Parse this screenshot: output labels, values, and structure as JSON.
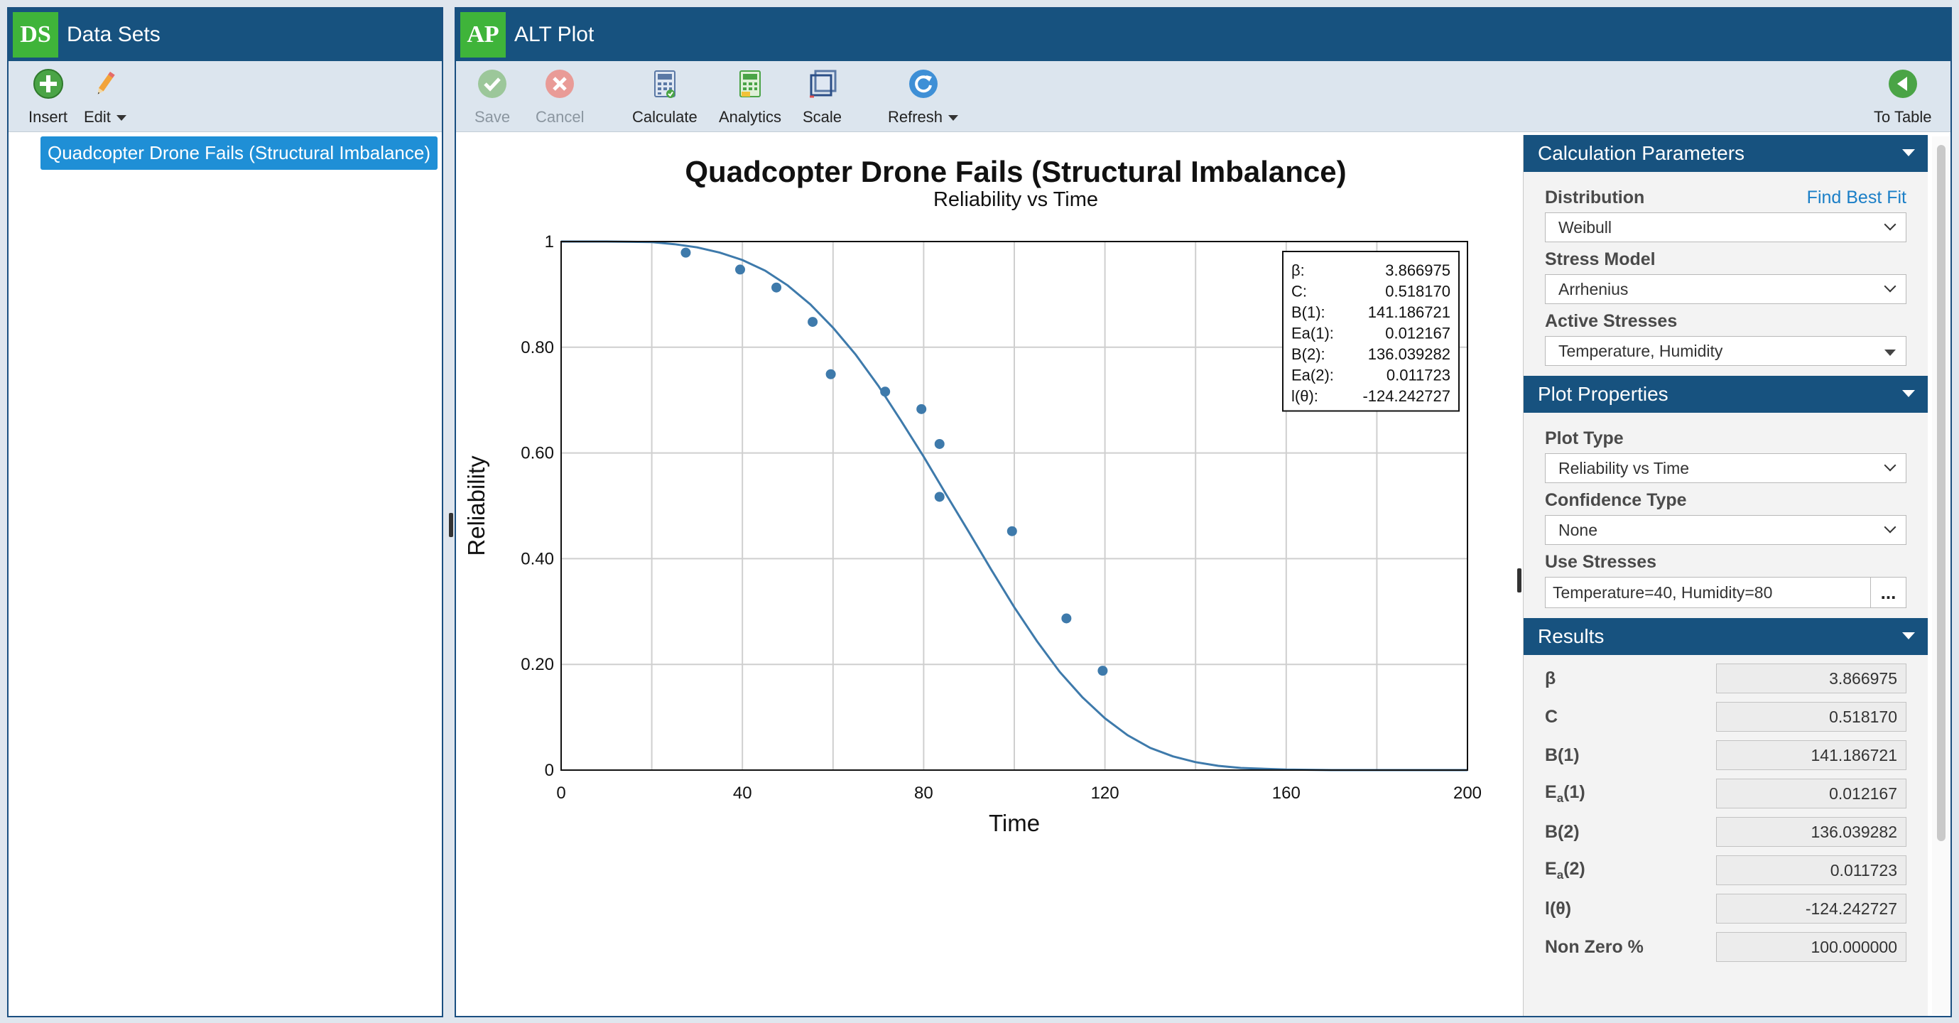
{
  "left_panel": {
    "badge": "DS",
    "title": "Data Sets",
    "toolbar": {
      "insert": "Insert",
      "edit": "Edit"
    },
    "tree_item": "Quadcopter Drone Fails (Structural Imbalance)"
  },
  "main_panel": {
    "badge": "AP",
    "title": "ALT Plot",
    "toolbar": {
      "save": "Save",
      "cancel": "Cancel",
      "calculate": "Calculate",
      "analytics": "Analytics",
      "scale": "Scale",
      "refresh": "Refresh",
      "to_table": "To Table"
    }
  },
  "chart_data": {
    "type": "scatter",
    "title": "Quadcopter Drone Fails (Structural Imbalance)",
    "subtitle": "Reliability vs Time",
    "xlabel": "Time",
    "ylabel": "Reliability",
    "xlim": [
      0,
      200
    ],
    "ylim": [
      0,
      1
    ],
    "x_ticks": [
      "0",
      "40",
      "80",
      "120",
      "160",
      "200"
    ],
    "y_ticks": [
      "0",
      "0.20",
      "0.40",
      "0.60",
      "0.80",
      "1"
    ],
    "grid": true,
    "points": [
      {
        "x": 27.5,
        "y": 0.979
      },
      {
        "x": 39.5,
        "y": 0.947
      },
      {
        "x": 47.5,
        "y": 0.913
      },
      {
        "x": 55.5,
        "y": 0.848
      },
      {
        "x": 59.5,
        "y": 0.749
      },
      {
        "x": 71.5,
        "y": 0.716
      },
      {
        "x": 79.5,
        "y": 0.683
      },
      {
        "x": 83.5,
        "y": 0.617
      },
      {
        "x": 83.5,
        "y": 0.517
      },
      {
        "x": 99.5,
        "y": 0.452
      },
      {
        "x": 111.5,
        "y": 0.287
      },
      {
        "x": 119.5,
        "y": 0.188
      }
    ],
    "curve": {
      "x": [
        0,
        10,
        20,
        25,
        30,
        35,
        40,
        45,
        50,
        55,
        60,
        65,
        70,
        75,
        80,
        85,
        90,
        95,
        100,
        105,
        110,
        115,
        120,
        125,
        130,
        135,
        140,
        145,
        150,
        160,
        170,
        180,
        200
      ],
      "y": [
        1,
        1.0,
        0.999,
        0.995,
        0.989,
        0.979,
        0.965,
        0.945,
        0.917,
        0.881,
        0.837,
        0.786,
        0.727,
        0.661,
        0.593,
        0.521,
        0.45,
        0.378,
        0.308,
        0.244,
        0.186,
        0.138,
        0.098,
        0.066,
        0.042,
        0.026,
        0.015,
        0.008,
        0.004,
        0.001,
        0.0,
        0.0,
        0.0
      ]
    },
    "legend_position": "top-right",
    "legend": [
      {
        "k": "β:",
        "v": "3.866975"
      },
      {
        "k": "C:",
        "v": "0.518170"
      },
      {
        "k": "B(1):",
        "v": "141.186721"
      },
      {
        "k": "Ea(1):",
        "v": "0.012167"
      },
      {
        "k": "B(2):",
        "v": "136.039282"
      },
      {
        "k": "Ea(2):",
        "v": "0.011723"
      },
      {
        "k": "l(θ):",
        "v": "-124.242727"
      }
    ],
    "line_color": "#3e7aab",
    "point_color": "#3e7aab"
  },
  "side": {
    "calc": {
      "title": "Calculation Parameters",
      "distribution_label": "Distribution",
      "find_best_fit": "Find Best Fit",
      "distribution": "Weibull",
      "stress_model_label": "Stress Model",
      "stress_model": "Arrhenius",
      "active_stresses_label": "Active Stresses",
      "active_stresses": "Temperature, Humidity"
    },
    "plot": {
      "title": "Plot Properties",
      "plot_type_label": "Plot Type",
      "plot_type": "Reliability vs Time",
      "confidence_type_label": "Confidence Type",
      "confidence_type": "None",
      "use_stresses_label": "Use Stresses",
      "use_stresses": "Temperature=40, Humidity=80",
      "dots": "..."
    },
    "results": {
      "title": "Results",
      "rows": [
        {
          "label": "β",
          "value": "3.866975"
        },
        {
          "label": "C",
          "value": "0.518170"
        },
        {
          "label": "B(1)",
          "value": "141.186721"
        },
        {
          "label_main": "E",
          "label_sub": "a",
          "label_tail": "(1)",
          "value": "0.012167"
        },
        {
          "label": "B(2)",
          "value": "136.039282"
        },
        {
          "label_main": "E",
          "label_sub": "a",
          "label_tail": "(2)",
          "value": "0.011723"
        },
        {
          "label": "l(θ)",
          "value": "-124.242727"
        },
        {
          "label": "Non Zero %",
          "value": "100.000000"
        }
      ]
    }
  }
}
